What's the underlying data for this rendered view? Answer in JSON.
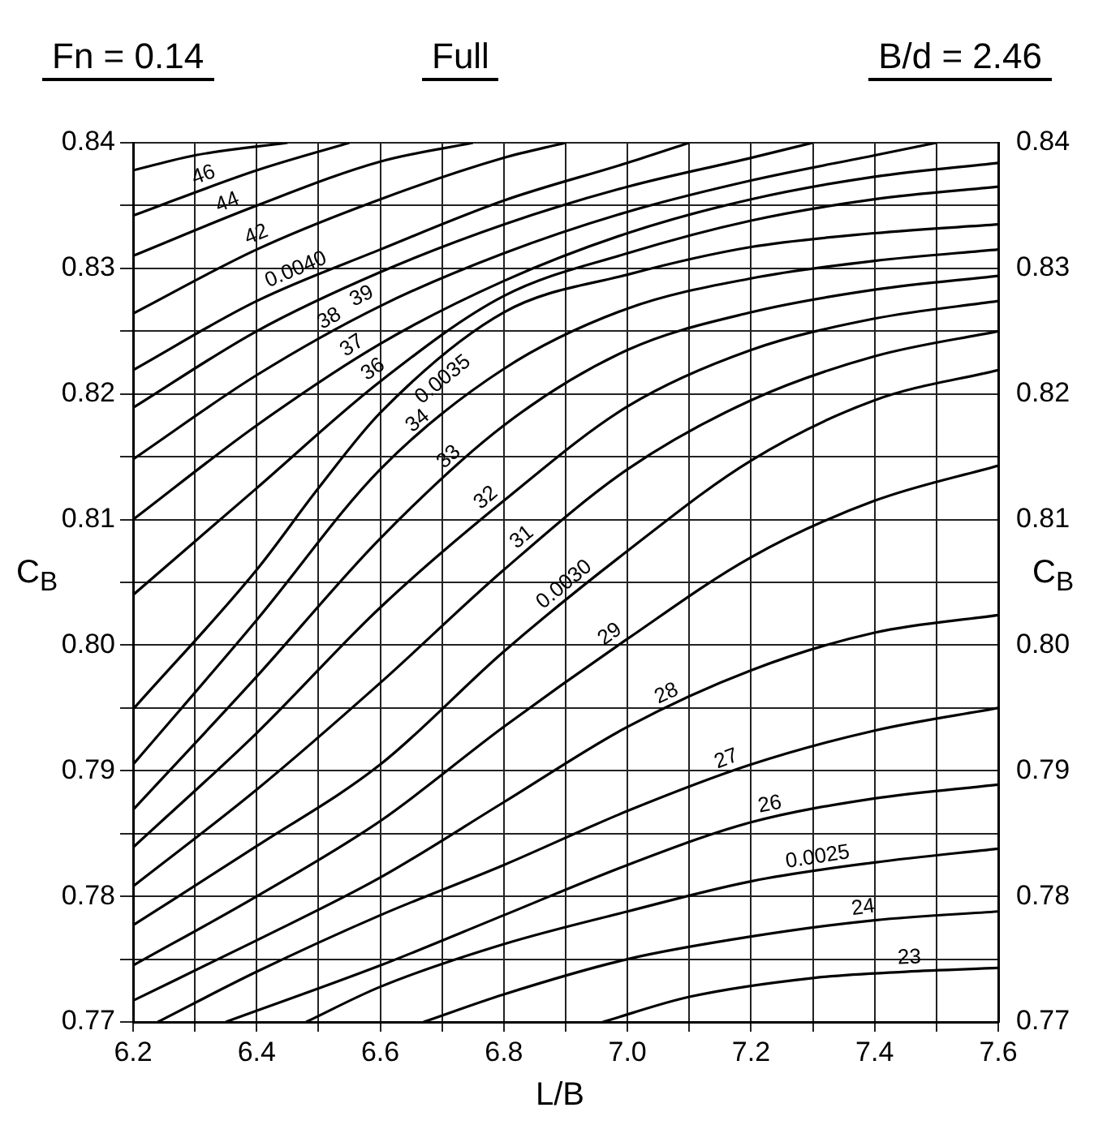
{
  "chart_data": {
    "type": "line",
    "title": "Full",
    "annotations": [
      "Fn = 0.14",
      "B/d = 2.46"
    ],
    "xlabel": "L/B",
    "ylabel": "C$_{B}$",
    "y2label": "C$_{B}$",
    "xlim": [
      6.2,
      7.6
    ],
    "ylim": [
      0.77,
      0.84
    ],
    "y2lim": [
      0.77,
      0.84
    ],
    "xticks": [
      {
        "value": 6.2,
        "label": "6.2"
      },
      {
        "value": 6.3,
        "label": null
      },
      {
        "value": 6.4,
        "label": "6.4"
      },
      {
        "value": 6.5,
        "label": null
      },
      {
        "value": 6.6,
        "label": "6.6"
      },
      {
        "value": 6.7,
        "label": null
      },
      {
        "value": 6.8,
        "label": "6.8"
      },
      {
        "value": 6.9,
        "label": null
      },
      {
        "value": 7,
        "label": "7.0"
      },
      {
        "value": 7.1,
        "label": null
      },
      {
        "value": 7.2,
        "label": "7.2"
      },
      {
        "value": 7.3,
        "label": null
      },
      {
        "value": 7.4,
        "label": "7.4"
      },
      {
        "value": 7.5,
        "label": null
      },
      {
        "value": 7.6,
        "label": "7.6"
      }
    ],
    "yticks": [
      0.77,
      {
        "value": 0.775,
        "label": null
      },
      0.78,
      {
        "value": 0.785,
        "label": null
      },
      0.79,
      {
        "value": 0.795,
        "label": null
      },
      {
        "value": 0.8,
        "label": "0.80"
      },
      {
        "value": 0.805,
        "label": null
      },
      0.81,
      {
        "value": 0.815,
        "label": null
      },
      0.82,
      {
        "value": 0.825,
        "label": null
      },
      0.83,
      {
        "value": 0.835,
        "label": null
      },
      0.84
    ],
    "y2ticks": [
      0.77,
      0.78,
      0.79,
      {
        "value": 0.8,
        "label": "0.80"
      },
      0.81,
      0.82,
      0.83,
      0.84
    ],
    "grid": true,
    "marker": "none",
    "line_style": "solid",
    "series": [
      {
        "color": "#000000",
        "x": [
          6.2,
          6.3,
          6.45
        ],
        "values": [
          0.8378,
          0.839,
          0.84
        ]
      },
      {
        "name": "46",
        "color": "#000000",
        "x": [
          6.2,
          6.4,
          6.55
        ],
        "values": [
          0.8342,
          0.8378,
          0.84
        ]
      },
      {
        "name": "44",
        "color": "#000000",
        "x": [
          6.2,
          6.4,
          6.6,
          6.75
        ],
        "values": [
          0.831,
          0.835,
          0.8385,
          0.84
        ]
      },
      {
        "name": "42",
        "color": "#000000",
        "x": [
          6.2,
          6.4,
          6.6,
          6.8,
          6.9
        ],
        "values": [
          0.8264,
          0.8315,
          0.8355,
          0.8388,
          0.84
        ]
      },
      {
        "name": "0.0040",
        "color": "#000000",
        "x": [
          6.2,
          6.4,
          6.6,
          6.8,
          7.0,
          7.1
        ],
        "values": [
          0.8219,
          0.8274,
          0.8315,
          0.8354,
          0.8384,
          0.84
        ]
      },
      {
        "name": "39",
        "color": "#000000",
        "x": [
          6.2,
          6.4,
          6.6,
          6.8,
          7.0,
          7.2,
          7.3
        ],
        "values": [
          0.8189,
          0.825,
          0.8297,
          0.8335,
          0.8365,
          0.8388,
          0.84
        ]
      },
      {
        "name": "38",
        "color": "#000000",
        "x": [
          6.2,
          6.4,
          6.6,
          6.8,
          7.0,
          7.2,
          7.4,
          7.5
        ],
        "values": [
          0.8148,
          0.8215,
          0.827,
          0.8312,
          0.8345,
          0.837,
          0.839,
          0.84
        ]
      },
      {
        "name": "37",
        "color": "#000000",
        "x": [
          6.2,
          6.4,
          6.6,
          6.8,
          7.0,
          7.2,
          7.4,
          7.6
        ],
        "values": [
          0.81,
          0.8175,
          0.824,
          0.829,
          0.8328,
          0.8355,
          0.8373,
          0.8384
        ]
      },
      {
        "name": "36",
        "color": "#000000",
        "x": [
          6.2,
          6.4,
          6.6,
          6.8,
          7.0,
          7.2,
          7.4,
          7.6
        ],
        "values": [
          0.804,
          0.8125,
          0.821,
          0.8278,
          0.8312,
          0.8338,
          0.8355,
          0.8365
        ]
      },
      {
        "name": "0.0035",
        "color": "#000000",
        "x": [
          6.2,
          6.4,
          6.5,
          6.6,
          6.8,
          7.0,
          7.2,
          7.4,
          7.6
        ],
        "values": [
          0.7949,
          0.806,
          0.8125,
          0.8185,
          0.8265,
          0.8295,
          0.8317,
          0.8328,
          0.8335
        ]
      },
      {
        "name": "34",
        "color": "#000000",
        "x": [
          6.2,
          6.4,
          6.6,
          6.8,
          7.0,
          7.2,
          7.4,
          7.6
        ],
        "values": [
          0.7905,
          0.802,
          0.814,
          0.822,
          0.8268,
          0.8292,
          0.8306,
          0.8315
        ]
      },
      {
        "name": "33",
        "color": "#000000",
        "x": [
          6.2,
          6.4,
          6.6,
          6.8,
          7.0,
          7.2,
          7.4,
          7.6
        ],
        "values": [
          0.7869,
          0.7975,
          0.8085,
          0.8175,
          0.8235,
          0.8265,
          0.8283,
          0.8294
        ]
      },
      {
        "name": "32",
        "color": "#000000",
        "x": [
          6.2,
          6.4,
          6.6,
          6.8,
          7.0,
          7.2,
          7.4,
          7.6
        ],
        "values": [
          0.7839,
          0.793,
          0.803,
          0.8115,
          0.819,
          0.8235,
          0.826,
          0.8274
        ]
      },
      {
        "name": "31",
        "color": "#000000",
        "x": [
          6.2,
          6.4,
          6.6,
          6.8,
          7.0,
          7.2,
          7.4,
          7.6
        ],
        "values": [
          0.7808,
          0.7885,
          0.797,
          0.806,
          0.814,
          0.8195,
          0.823,
          0.825
        ]
      },
      {
        "name": "0.0030",
        "color": "#000000",
        "x": [
          6.2,
          6.4,
          6.6,
          6.8,
          7.0,
          7.2,
          7.4,
          7.6
        ],
        "values": [
          0.7777,
          0.784,
          0.7905,
          0.7995,
          0.8075,
          0.8147,
          0.8195,
          0.8219
        ]
      },
      {
        "name": "29",
        "color": "#000000",
        "x": [
          6.2,
          6.4,
          6.6,
          6.8,
          7.0,
          7.2,
          7.4,
          7.6
        ],
        "values": [
          0.7745,
          0.78,
          0.786,
          0.7935,
          0.8005,
          0.807,
          0.8115,
          0.8143
        ]
      },
      {
        "name": "28",
        "color": "#000000",
        "x": [
          6.2,
          6.4,
          6.6,
          6.8,
          7.0,
          7.2,
          7.4,
          7.6
        ],
        "values": [
          0.7717,
          0.7765,
          0.7815,
          0.7875,
          0.7935,
          0.798,
          0.801,
          0.8024
        ]
      },
      {
        "name": "27",
        "color": "#000000",
        "x": [
          6.24,
          6.4,
          6.6,
          6.8,
          7.0,
          7.2,
          7.4,
          7.6
        ],
        "values": [
          0.77,
          0.774,
          0.7785,
          0.7825,
          0.7868,
          0.7905,
          0.7932,
          0.795
        ]
      },
      {
        "name": "26",
        "color": "#000000",
        "x": [
          6.35,
          6.6,
          6.8,
          7.0,
          7.2,
          7.4,
          7.6
        ],
        "values": [
          0.77,
          0.7745,
          0.7785,
          0.7825,
          0.7859,
          0.7878,
          0.7889
        ]
      },
      {
        "name": "0.0025",
        "color": "#000000",
        "x": [
          6.48,
          6.6,
          6.8,
          7.0,
          7.2,
          7.4,
          7.6
        ],
        "values": [
          0.77,
          0.7728,
          0.7762,
          0.7788,
          0.7812,
          0.7827,
          0.7838
        ]
      },
      {
        "name": "24",
        "color": "#000000",
        "x": [
          6.67,
          6.8,
          7.0,
          7.2,
          7.4,
          7.6
        ],
        "values": [
          0.77,
          0.7722,
          0.775,
          0.7768,
          0.7781,
          0.7788
        ]
      },
      {
        "name": "23",
        "color": "#000000",
        "x": [
          6.96,
          7.1,
          7.3,
          7.45,
          7.6
        ],
        "values": [
          0.77,
          0.772,
          0.7735,
          0.774,
          0.7743
        ]
      }
    ]
  }
}
